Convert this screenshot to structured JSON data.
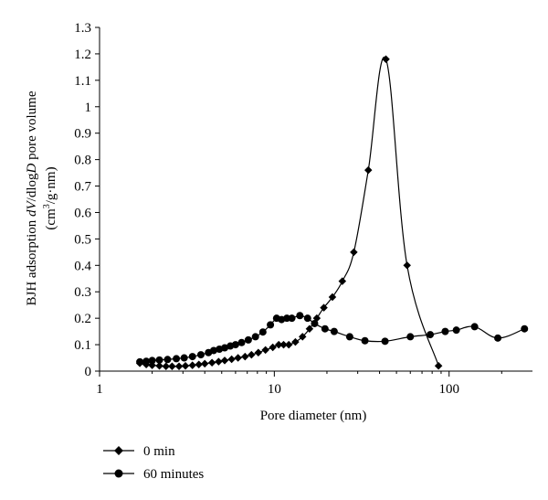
{
  "chart_data": {
    "type": "line",
    "title": "",
    "xlabel": "Pore diameter (nm)",
    "ylabel_line1_prefix": "BJH adsorption ",
    "ylabel_line1_dv": "dV",
    "ylabel_line1_slash": "/",
    "ylabel_line1_dlog": "dlog",
    "ylabel_line1_D": "D",
    "ylabel_line1_suffix": " pore volume",
    "ylabel_line2_open": "(cm",
    "ylabel_line2_sup": "3",
    "ylabel_line2_close": "/g·nm)",
    "x_scale": "log",
    "xlim": [
      1,
      300
    ],
    "ylim": [
      0,
      1.3
    ],
    "x_ticks": [
      1,
      10,
      100
    ],
    "x_tick_labels": [
      "1",
      "10",
      "100"
    ],
    "y_ticks": [
      0,
      0.1,
      0.2,
      0.3,
      0.4,
      0.5,
      0.6,
      0.7,
      0.8,
      0.9,
      1,
      1.1,
      1.2,
      1.3
    ],
    "y_tick_labels": [
      "0",
      "0.1",
      "0.2",
      "0.3",
      "0.4",
      "0.5",
      "0.6",
      "0.7",
      "0.8",
      "0.9",
      "1",
      "1.1",
      "1.2",
      "1.3"
    ],
    "grid": false,
    "legend_placement": "bottom-left, below plot",
    "series": [
      {
        "name": "0 min",
        "marker": "diamond",
        "color": "#000000",
        "x": [
          1.7,
          1.85,
          2.0,
          2.2,
          2.4,
          2.6,
          2.85,
          3.1,
          3.4,
          3.7,
          4.0,
          4.4,
          4.8,
          5.2,
          5.7,
          6.2,
          6.8,
          7.4,
          8.1,
          8.9,
          9.8,
          10.6,
          11.3,
          12.1,
          13.2,
          14.5,
          15.9,
          17.5,
          19.2,
          21.5,
          24.5,
          28.5,
          34.5,
          43.5,
          57.5,
          87.0
        ],
        "y": [
          0.03,
          0.025,
          0.022,
          0.02,
          0.018,
          0.018,
          0.018,
          0.02,
          0.022,
          0.025,
          0.028,
          0.032,
          0.036,
          0.04,
          0.045,
          0.05,
          0.055,
          0.062,
          0.07,
          0.08,
          0.09,
          0.1,
          0.1,
          0.1,
          0.11,
          0.13,
          0.16,
          0.2,
          0.24,
          0.28,
          0.34,
          0.45,
          0.76,
          1.18,
          0.4,
          0.02
        ]
      },
      {
        "name": "60 minutes",
        "marker": "circle",
        "color": "#000000",
        "x": [
          1.7,
          1.85,
          2.0,
          2.2,
          2.45,
          2.75,
          3.05,
          3.4,
          3.8,
          4.2,
          4.5,
          4.85,
          5.2,
          5.6,
          6.0,
          6.5,
          7.1,
          7.8,
          8.6,
          9.5,
          10.3,
          11.0,
          11.8,
          12.6,
          14.0,
          15.5,
          17.0,
          19.5,
          22.0,
          27.0,
          33.0,
          43.0,
          60.0,
          78.0,
          95.0,
          110.0,
          140.0,
          190.0,
          270.0
        ],
        "y": [
          0.035,
          0.037,
          0.04,
          0.042,
          0.044,
          0.047,
          0.05,
          0.055,
          0.062,
          0.07,
          0.078,
          0.083,
          0.088,
          0.095,
          0.1,
          0.108,
          0.118,
          0.13,
          0.148,
          0.175,
          0.2,
          0.195,
          0.2,
          0.2,
          0.21,
          0.2,
          0.18,
          0.16,
          0.15,
          0.13,
          0.115,
          0.113,
          0.13,
          0.138,
          0.15,
          0.155,
          0.168,
          0.125,
          0.16
        ]
      }
    ]
  }
}
